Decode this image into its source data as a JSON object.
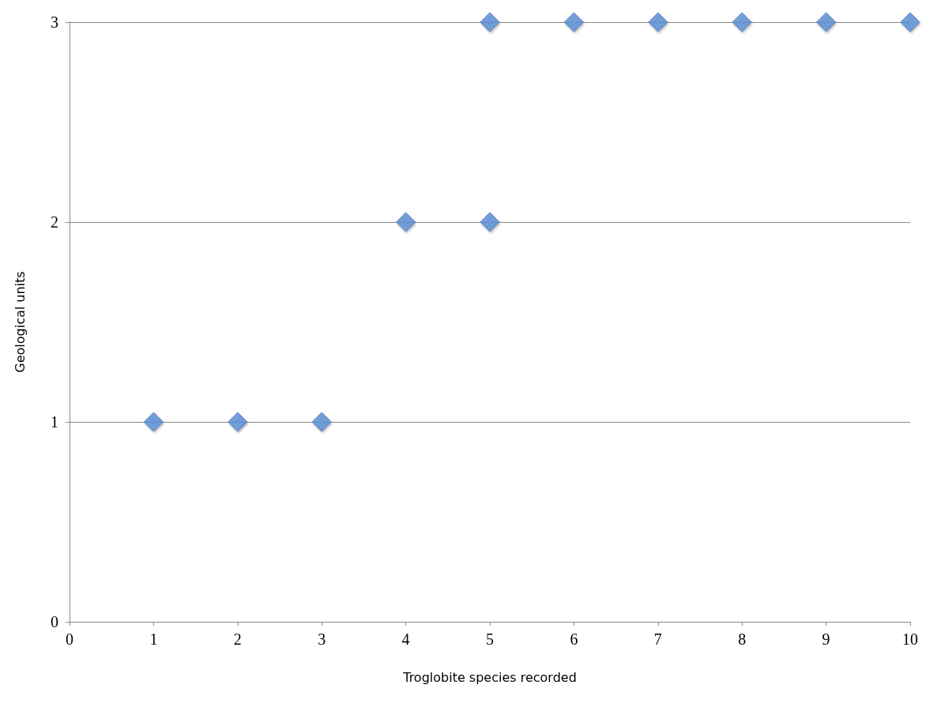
{
  "chart_data": {
    "type": "scatter",
    "xlabel": "Troglobite species recorded",
    "ylabel": "Geological units",
    "x": [
      1,
      2,
      3,
      4,
      5,
      5,
      6,
      7,
      8,
      9,
      10
    ],
    "values": [
      1,
      1,
      1,
      2,
      2,
      3,
      3,
      3,
      3,
      3,
      3
    ],
    "color": "#5b8fd6",
    "xlim": [
      0,
      10
    ],
    "xticks": [
      0,
      1,
      2,
      3,
      4,
      5,
      6,
      7,
      8,
      9,
      10
    ],
    "ylim": [
      0,
      3
    ],
    "yticks": [
      0,
      1,
      2,
      3
    ],
    "grid": "y",
    "marker": "diamond"
  }
}
